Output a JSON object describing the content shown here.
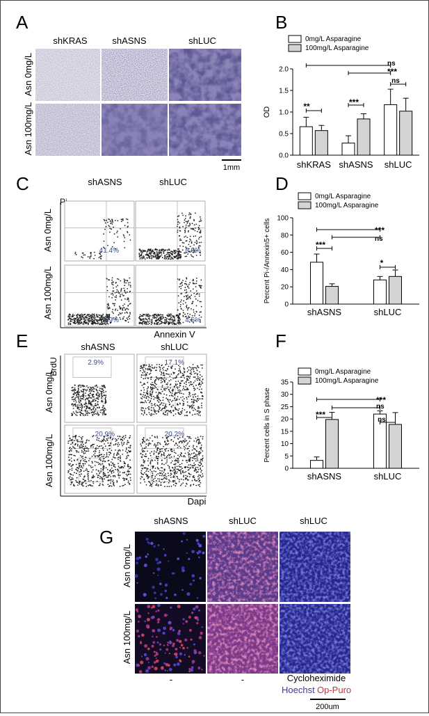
{
  "panels": {
    "A": {
      "letter": "A",
      "cols": [
        "shKRAS",
        "shASNS",
        "shLUC"
      ],
      "rows": [
        "Asn 0mg/L",
        "Asn 100mg/L"
      ],
      "scale": "1mm"
    },
    "C": {
      "letter": "C",
      "cols": [
        "shASNS",
        "shLUC"
      ],
      "rows": [
        "Asn 0mg/L",
        "Asn 100mg/L"
      ],
      "yaxis": "Pi",
      "xaxis": "Annexin V",
      "percents": [
        "41.4%",
        "8.9%",
        "4.9%",
        "4.5%"
      ]
    },
    "E": {
      "letter": "E",
      "cols": [
        "shASNS",
        "shLUC"
      ],
      "rows": [
        "Asn 0mg/L",
        "Asn 100mg/L"
      ],
      "yaxis": "BrdU",
      "xaxis": "Dapi",
      "percents": [
        "2.9%",
        "17.1%",
        "20.9%",
        "20.2%"
      ]
    },
    "G": {
      "letter": "G",
      "cols": [
        "shASNS",
        "shLUC",
        "shLUC"
      ],
      "rows": [
        "Asn 0mg/L",
        "Asn 100mg/L"
      ],
      "treatments": [
        "-",
        "-",
        "Cycloheximide"
      ],
      "stain1": "Hoechst",
      "stain2": "Op-Puro",
      "scale": "200um",
      "stain1_color": "#3a3aa0",
      "stain2_color": "#d0303a"
    }
  },
  "chart_data": [
    {
      "letter": "B",
      "type": "bar",
      "ylabel": "OD",
      "ylim": [
        0,
        2.0
      ],
      "yticks": [
        "0.0",
        "0.5",
        "1.0",
        "1.5",
        "2.0"
      ],
      "categories": [
        "shKRAS",
        "shASNS",
        "shLUC"
      ],
      "series": [
        {
          "name": "0mg/L Asparagine",
          "values": [
            0.66,
            0.28,
            1.17
          ],
          "errors": [
            0.22,
            0.17,
            0.36
          ]
        },
        {
          "name": "100mg/L Asparagine",
          "values": [
            0.57,
            0.84,
            1.02
          ],
          "errors": [
            0.12,
            0.12,
            0.3
          ]
        }
      ],
      "legend": "top-left",
      "annotations": [
        "ns",
        "***",
        "**",
        "***",
        "ns"
      ]
    },
    {
      "letter": "D",
      "type": "bar",
      "ylabel": "Percent Pi-/Annexin5+ cells",
      "ylim": [
        0,
        100
      ],
      "yticks": [
        "0",
        "20",
        "40",
        "60",
        "80",
        "100"
      ],
      "categories": [
        "shASNS",
        "shLUC"
      ],
      "series": [
        {
          "name": "0mg/L Asparagine",
          "values": [
            48.5,
            28
          ],
          "errors": [
            9.5,
            4
          ]
        },
        {
          "name": "100mg/L Asparagine",
          "values": [
            20.5,
            32
          ],
          "errors": [
            3,
            7.5
          ]
        }
      ],
      "legend": "top-left",
      "annotations": [
        "***",
        "ns",
        "***",
        "*"
      ]
    },
    {
      "letter": "F",
      "type": "bar",
      "ylabel": "Percent cells in S phase",
      "ylim": [
        0,
        35
      ],
      "yticks": [
        "0",
        "5",
        "10",
        "15",
        "20",
        "25",
        "30",
        "35"
      ],
      "categories": [
        "shASNS",
        "shLUC"
      ],
      "series": [
        {
          "name": "0mg/L Asparagine",
          "values": [
            3.2,
            22
          ],
          "errors": [
            1.4,
            1.3
          ]
        },
        {
          "name": "100mg/L Asparagine",
          "values": [
            19.8,
            17.8
          ],
          "errors": [
            2.9,
            4.8
          ]
        }
      ],
      "legend": "top-left",
      "annotations": [
        "***",
        "ns",
        "***",
        "ns"
      ]
    }
  ]
}
